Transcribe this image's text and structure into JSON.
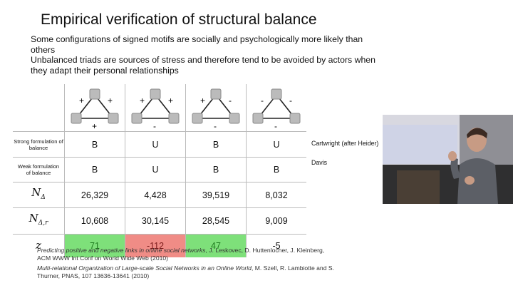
{
  "title": "Empirical verification of structural balance",
  "intro": [
    "Some configurations of signed motifs are socially and psychologically more likely than others",
    "Unbalanced triads are sources of stress and therefore tend to be avoided by actors when they adapt their personal relationships"
  ],
  "motifs": [
    {
      "left": "+",
      "right": "+",
      "bottom": "+"
    },
    {
      "left": "+",
      "right": "+",
      "bottom": "-"
    },
    {
      "left": "+",
      "right": "-",
      "bottom": "-"
    },
    {
      "left": "-",
      "right": "-",
      "bottom": "-"
    }
  ],
  "rows": {
    "strong": {
      "label_line1": "Strong formulation of",
      "label_line2": "balance",
      "values": [
        "B",
        "U",
        "B",
        "U"
      ],
      "note": "Cartwright (after Heider)"
    },
    "weak": {
      "label_line1": "Weak formulation",
      "label_line2": "of balance",
      "values": [
        "B",
        "U",
        "B",
        "B"
      ],
      "note": "Davis"
    },
    "n_delta": {
      "symbol": "N",
      "sub": "Δ",
      "values": [
        "26,329",
        "4,428",
        "39,519",
        "8,032"
      ]
    },
    "n_delta_r": {
      "symbol": "N",
      "sub": "Δ,r",
      "values": [
        "10,608",
        "30,145",
        "28,545",
        "9,009"
      ]
    },
    "z": {
      "symbol": "z",
      "values": [
        "71",
        "-112",
        "47",
        "-5"
      ]
    }
  },
  "colors": {
    "positive": "#7ee07a",
    "negative": "#f08c86"
  },
  "references": [
    {
      "title": "Predicting positive and negative links in online social networks",
      "rest": ", J. Leskovec, D. Huttenlocher, J. Kleinberg,  ACM WWW Int Conf on World Wide Web (2010)"
    },
    {
      "title": "Multi-relational Organization of Large-scale Social Networks in an Online World",
      "rest": ", M. Szell, R. Lambiotte and S. Thurner, PNAS, 107 13636-13641 (2010)"
    }
  ]
}
